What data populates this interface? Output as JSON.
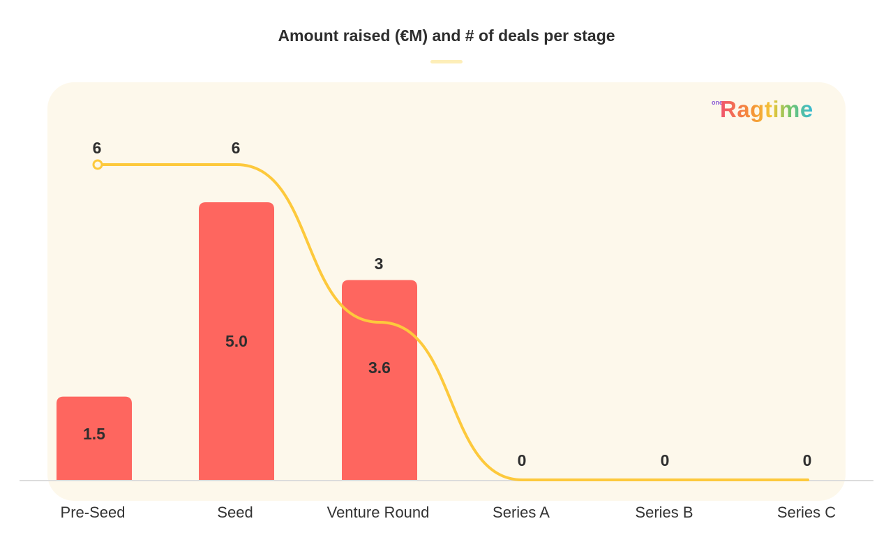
{
  "chart_data": {
    "type": "bar",
    "title": "Amount raised (€M) and # of deals per stage",
    "categories": [
      "Pre-Seed",
      "Seed",
      "Venture Round",
      "Series A",
      "Series B",
      "Series C"
    ],
    "series": [
      {
        "type": "bar",
        "values": [
          1.5,
          5.0,
          3.6,
          0,
          0,
          0
        ],
        "labels": [
          "1.5",
          "5.0",
          "3.6",
          "",
          "",
          ""
        ],
        "color": "#fe665f"
      },
      {
        "type": "line",
        "values": [
          6,
          6,
          3,
          0,
          0,
          0
        ],
        "labels": [
          "6",
          "6",
          "3",
          "0",
          "0",
          "0"
        ],
        "color": "#fdc93c"
      }
    ],
    "grid": false,
    "legend": "none"
  },
  "brand": {
    "logo_prefix": "one",
    "logo_text": "Ragtime"
  }
}
